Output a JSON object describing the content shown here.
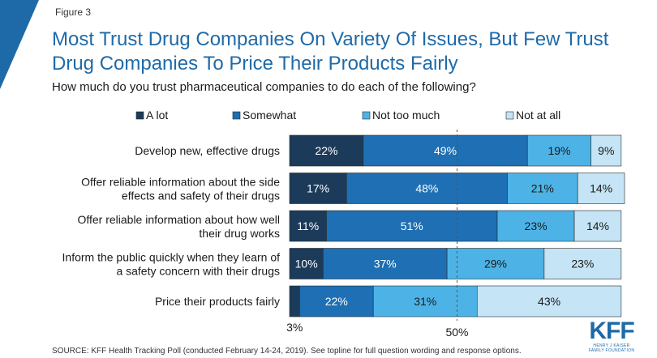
{
  "figure_label": "Figure 3",
  "title_line1": "Most Trust Drug Companies On Variety Of Issues, But Few Trust",
  "title_line2": "Drug Companies To Price Their Products Fairly",
  "subtitle": "How much do you trust pharmaceutical companies to do each of the following?",
  "source": "SOURCE: KFF Health Tracking Poll (conducted February 14-24, 2019). See topline for full question wording and response options.",
  "logo": {
    "mark": "KFF",
    "line1": "HENRY J KAISER",
    "line2": "FAMILY FOUNDATION"
  },
  "colors": {
    "title": "#1e6aa8",
    "corner": "#1e6aa8",
    "series": [
      "#1c3b5a",
      "#1e6fb3",
      "#4db3e6",
      "#c5e4f5"
    ]
  },
  "chart_data": {
    "type": "bar",
    "orientation": "horizontal",
    "stacked": true,
    "categories": [
      [
        "Develop new, effective drugs"
      ],
      [
        "Offer reliable information about the side",
        "effects and safety of their drugs"
      ],
      [
        "Offer reliable information about how well",
        "their drug works"
      ],
      [
        "Inform the public quickly when they learn of",
        "a safety concern with their drugs"
      ],
      [
        "Price their products fairly"
      ]
    ],
    "series": [
      {
        "name": "A lot",
        "values": [
          22,
          17,
          11,
          10,
          3
        ]
      },
      {
        "name": "Somewhat",
        "values": [
          49,
          48,
          51,
          37,
          22
        ]
      },
      {
        "name": "Not too much",
        "values": [
          19,
          21,
          23,
          29,
          31
        ]
      },
      {
        "name": "Not at all",
        "values": [
          9,
          14,
          14,
          23,
          43
        ]
      }
    ],
    "labels": [
      [
        "22%",
        "49%",
        "19%",
        "9%"
      ],
      [
        "17%",
        "48%",
        "21%",
        "14%"
      ],
      [
        "11%",
        "51%",
        "23%",
        "14%"
      ],
      [
        "10%",
        "37%",
        "29%",
        "23%"
      ],
      [
        "3%",
        "22%",
        "31%",
        "43%"
      ]
    ],
    "reference_line": {
      "value": 50,
      "label": "50%",
      "style": "dashed"
    },
    "legend_position": "top",
    "xlim": [
      0,
      100
    ]
  }
}
